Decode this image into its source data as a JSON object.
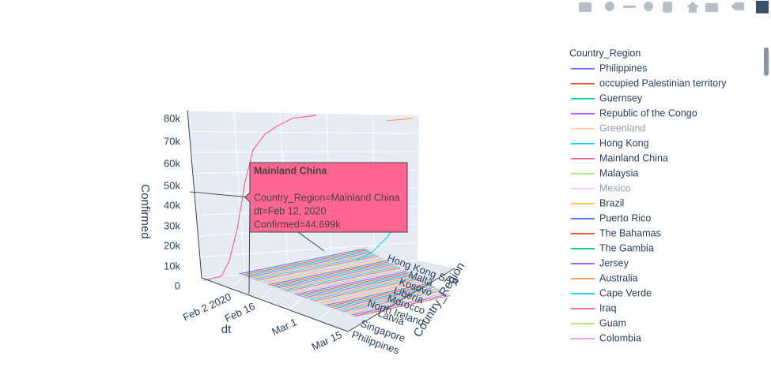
{
  "scene": {
    "z_axis": {
      "title": "Confirmed",
      "ticks": [
        "80k",
        "70k",
        "60k",
        "50k",
        "40k",
        "30k",
        "20k",
        "10k",
        "0"
      ]
    },
    "x_axis": {
      "title": "dt",
      "ticks": [
        "Feb 2 2020",
        "Feb 16",
        "Mar 1",
        "Mar 15"
      ]
    },
    "y_axis": {
      "title": "Country_Region",
      "ticks": [
        "Hong Kong SAR",
        "Malta",
        "Kosovo",
        "Liberia",
        "Morocco",
        "North Ireland",
        "Latvia",
        "Singapore",
        "Philippines"
      ]
    }
  },
  "hover": {
    "title": "Mainland China",
    "color": "#FF6692",
    "lines": [
      "Country_Region=Mainland China",
      "dt=Feb 12, 2020",
      "Confirmed=44.699k"
    ]
  },
  "legend": {
    "title": "Country_Region",
    "items": [
      {
        "name": "Philippines",
        "color": "#636efa",
        "hidden": false
      },
      {
        "name": "occupied Palestinian territory",
        "color": "#EF553B",
        "hidden": false
      },
      {
        "name": "Guernsey",
        "color": "#00cc96",
        "hidden": false
      },
      {
        "name": "Republic of the Congo",
        "color": "#ab63fa",
        "hidden": false
      },
      {
        "name": "Greenland",
        "color": "#FFA15A",
        "hidden": true
      },
      {
        "name": "Hong Kong",
        "color": "#19d3f3",
        "hidden": false
      },
      {
        "name": "Mainland China",
        "color": "#FF6692",
        "hidden": false
      },
      {
        "name": "Malaysia",
        "color": "#B6E880",
        "hidden": false
      },
      {
        "name": "Mexico",
        "color": "#FF97FF",
        "hidden": true
      },
      {
        "name": "Brazil",
        "color": "#FECB52",
        "hidden": false
      },
      {
        "name": "Puerto Rico",
        "color": "#636efa",
        "hidden": false
      },
      {
        "name": "The Bahamas",
        "color": "#EF553B",
        "hidden": false
      },
      {
        "name": "The Gambia",
        "color": "#00cc96",
        "hidden": false
      },
      {
        "name": "Jersey",
        "color": "#ab63fa",
        "hidden": false
      },
      {
        "name": "Australia",
        "color": "#FFA15A",
        "hidden": false
      },
      {
        "name": "Cape Verde",
        "color": "#19d3f3",
        "hidden": false
      },
      {
        "name": "Iraq",
        "color": "#FF6692",
        "hidden": false
      },
      {
        "name": "Guam",
        "color": "#B6E880",
        "hidden": false
      },
      {
        "name": "Colombia",
        "color": "#FF97FF",
        "hidden": false
      }
    ]
  }
}
